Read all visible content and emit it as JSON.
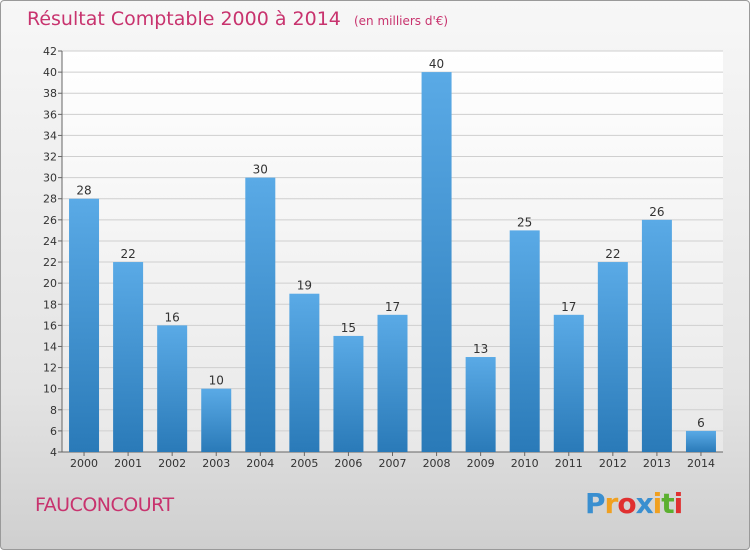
{
  "chart_data": {
    "type": "bar",
    "title": "Résultat Comptable 2000 à 2014",
    "subtitle": "(en milliers d'€)",
    "categories": [
      "2000",
      "2001",
      "2002",
      "2003",
      "2004",
      "2005",
      "2006",
      "2007",
      "2008",
      "2009",
      "2010",
      "2011",
      "2012",
      "2013",
      "2014"
    ],
    "values": [
      28,
      22,
      16,
      10,
      30,
      19,
      15,
      17,
      40,
      13,
      25,
      17,
      22,
      26,
      6
    ],
    "ylim": [
      4,
      42
    ],
    "yticks": [
      4,
      6,
      8,
      10,
      12,
      14,
      16,
      18,
      20,
      22,
      24,
      26,
      28,
      30,
      32,
      34,
      36,
      38,
      40,
      42
    ],
    "xlabel": "",
    "ylabel": "",
    "grid": true
  },
  "commune": "FAUCONCOURT",
  "logo": {
    "letters": [
      "P",
      "r",
      "o",
      "x",
      "i",
      "t",
      "i"
    ],
    "colors": [
      "#3a8fd0",
      "#f0a020",
      "#e03030",
      "#3a8fd0",
      "#f0a020",
      "#5cb030",
      "#e03030"
    ]
  },
  "colors": {
    "bar_top": "#5aaae6",
    "bar_bottom": "#2a7ab8",
    "title": "#c8336e"
  }
}
